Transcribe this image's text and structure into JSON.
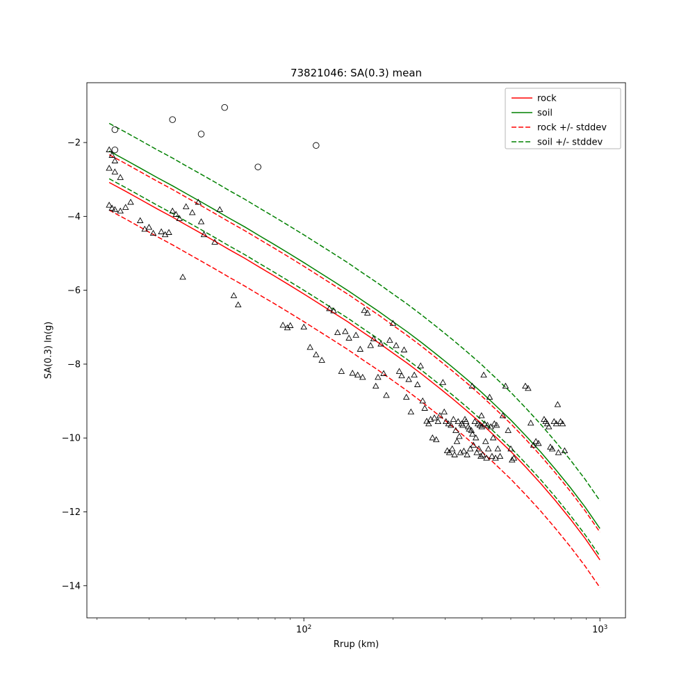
{
  "chart_data": {
    "type": "scatter",
    "title": "73821046: SA(0.3) mean",
    "xlabel": "Rrup (km)",
    "ylabel": "SA(0.3) ln(g)",
    "x_scale": "log",
    "xlim": [
      18.5,
      1220
    ],
    "ylim": [
      -14.87,
      -0.38
    ],
    "grid": false,
    "legend_position": "upper right",
    "x_major_ticks": [
      {
        "value": 100,
        "base": "10",
        "exp": "2"
      },
      {
        "value": 1000,
        "base": "10",
        "exp": "3"
      }
    ],
    "x_minor_ticks": [
      20,
      30,
      40,
      50,
      60,
      70,
      80,
      90,
      200,
      300,
      400,
      500,
      600,
      700,
      800,
      900
    ],
    "y_ticks": [
      {
        "value": -2,
        "label": "−2"
      },
      {
        "value": -4,
        "label": "−4"
      },
      {
        "value": -6,
        "label": "−6"
      },
      {
        "value": -8,
        "label": "−8"
      },
      {
        "value": -10,
        "label": "−10"
      },
      {
        "value": -12,
        "label": "−12"
      },
      {
        "value": -14,
        "label": "−14"
      }
    ],
    "stddev": 0.75,
    "colors": {
      "rock": "#ff0000",
      "soil": "#008000",
      "marker_edge": "#000000"
    },
    "legend": [
      {
        "label": "rock",
        "color": "#ff0000",
        "dash": false
      },
      {
        "label": "soil",
        "color": "#008000",
        "dash": false
      },
      {
        "label": "rock +/- stddev",
        "color": "#ff0000",
        "dash": true
      },
      {
        "label": "soil +/- stddev",
        "color": "#008000",
        "dash": true
      }
    ],
    "curves": {
      "R": [
        22,
        25,
        28,
        32,
        36,
        40,
        45,
        50,
        56,
        63,
        71,
        79,
        89,
        100,
        112,
        126,
        141,
        158,
        178,
        200,
        224,
        251,
        282,
        316,
        355,
        398,
        447,
        501,
        562,
        631,
        708,
        794,
        891,
        1000
      ],
      "rock_mean": [
        -3.08,
        -3.32,
        -3.54,
        -3.8,
        -4.02,
        -4.23,
        -4.46,
        -4.67,
        -4.9,
        -5.13,
        -5.38,
        -5.6,
        -5.85,
        -6.1,
        -6.35,
        -6.61,
        -6.86,
        -7.13,
        -7.41,
        -7.7,
        -7.98,
        -8.28,
        -8.6,
        -8.92,
        -9.26,
        -9.61,
        -9.99,
        -10.37,
        -10.79,
        -11.23,
        -11.7,
        -12.19,
        -12.72,
        -13.3
      ],
      "soil_mean": [
        -2.23,
        -2.47,
        -2.69,
        -2.95,
        -3.17,
        -3.38,
        -3.61,
        -3.82,
        -4.05,
        -4.28,
        -4.53,
        -4.75,
        -5.0,
        -5.25,
        -5.5,
        -5.76,
        -6.01,
        -6.28,
        -6.56,
        -6.85,
        -7.13,
        -7.43,
        -7.75,
        -8.07,
        -8.41,
        -8.76,
        -9.14,
        -9.52,
        -9.94,
        -10.38,
        -10.85,
        -11.34,
        -11.87,
        -12.45
      ]
    },
    "scatter": {
      "circles": [
        [
          23,
          -1.65
        ],
        [
          36,
          -1.38
        ],
        [
          54,
          -1.05
        ],
        [
          45,
          -1.77
        ],
        [
          70,
          -2.66
        ],
        [
          110,
          -2.08
        ],
        [
          23,
          -2.2
        ]
      ],
      "triangles": [
        [
          22,
          -2.2
        ],
        [
          22.5,
          -2.35
        ],
        [
          23,
          -2.5
        ],
        [
          22,
          -2.7
        ],
        [
          23,
          -2.8
        ],
        [
          24,
          -2.95
        ],
        [
          22,
          -3.7
        ],
        [
          22.5,
          -3.78
        ],
        [
          23,
          -3.82
        ],
        [
          24,
          -3.86
        ],
        [
          25,
          -3.76
        ],
        [
          26,
          -3.62
        ],
        [
          28,
          -4.12
        ],
        [
          29,
          -4.35
        ],
        [
          30,
          -4.3
        ],
        [
          31,
          -4.46
        ],
        [
          33,
          -4.42
        ],
        [
          34,
          -4.5
        ],
        [
          35,
          -4.44
        ],
        [
          36,
          -3.86
        ],
        [
          37,
          -3.95
        ],
        [
          38,
          -4.06
        ],
        [
          40,
          -3.74
        ],
        [
          42,
          -3.9
        ],
        [
          44,
          -3.62
        ],
        [
          45,
          -4.15
        ],
        [
          46,
          -4.5
        ],
        [
          39,
          -5.65
        ],
        [
          50,
          -4.7
        ],
        [
          52,
          -3.82
        ],
        [
          58,
          -6.15
        ],
        [
          60,
          -6.4
        ],
        [
          85,
          -6.95
        ],
        [
          88,
          -7.02
        ],
        [
          90,
          -6.96
        ],
        [
          100,
          -7.0
        ],
        [
          105,
          -7.55
        ],
        [
          110,
          -7.75
        ],
        [
          115,
          -7.9
        ],
        [
          122,
          -6.5
        ],
        [
          126,
          -6.56
        ],
        [
          130,
          -7.15
        ],
        [
          134,
          -8.2
        ],
        [
          138,
          -7.12
        ],
        [
          142,
          -7.3
        ],
        [
          146,
          -8.25
        ],
        [
          150,
          -7.22
        ],
        [
          152,
          -8.3
        ],
        [
          155,
          -7.6
        ],
        [
          158,
          -8.36
        ],
        [
          160,
          -6.55
        ],
        [
          164,
          -6.62
        ],
        [
          168,
          -7.5
        ],
        [
          172,
          -7.32
        ],
        [
          175,
          -8.6
        ],
        [
          178,
          -8.36
        ],
        [
          182,
          -7.46
        ],
        [
          186,
          -8.26
        ],
        [
          190,
          -8.85
        ],
        [
          195,
          -7.36
        ],
        [
          200,
          -6.9
        ],
        [
          205,
          -7.5
        ],
        [
          210,
          -8.2
        ],
        [
          214,
          -8.32
        ],
        [
          218,
          -7.62
        ],
        [
          222,
          -8.9
        ],
        [
          226,
          -8.42
        ],
        [
          230,
          -9.3
        ],
        [
          236,
          -8.3
        ],
        [
          242,
          -8.56
        ],
        [
          248,
          -8.05
        ],
        [
          252,
          -9.0
        ],
        [
          256,
          -9.2
        ],
        [
          260,
          -9.55
        ],
        [
          264,
          -9.62
        ],
        [
          268,
          -9.5
        ],
        [
          272,
          -10.0
        ],
        [
          276,
          -9.46
        ],
        [
          280,
          -10.05
        ],
        [
          284,
          -9.56
        ],
        [
          288,
          -9.4
        ],
        [
          295,
          -8.5
        ],
        [
          298,
          -9.3
        ],
        [
          302,
          -9.56
        ],
        [
          305,
          -10.35
        ],
        [
          308,
          -9.62
        ],
        [
          310,
          -10.4
        ],
        [
          314,
          -9.66
        ],
        [
          317,
          -10.3
        ],
        [
          320,
          -9.5
        ],
        [
          323,
          -10.46
        ],
        [
          326,
          -9.8
        ],
        [
          329,
          -10.1
        ],
        [
          332,
          -9.56
        ],
        [
          335,
          -9.96
        ],
        [
          338,
          -10.4
        ],
        [
          341,
          -9.62
        ],
        [
          344,
          -9.66
        ],
        [
          347,
          -10.36
        ],
        [
          350,
          -9.5
        ],
        [
          353,
          -9.56
        ],
        [
          356,
          -10.46
        ],
        [
          359,
          -9.7
        ],
        [
          362,
          -9.76
        ],
        [
          365,
          -10.3
        ],
        [
          368,
          -9.8
        ],
        [
          371,
          -9.9
        ],
        [
          374,
          -10.2
        ],
        [
          370,
          -8.6
        ],
        [
          378,
          -9.56
        ],
        [
          381,
          -10.0
        ],
        [
          384,
          -10.4
        ],
        [
          387,
          -9.62
        ],
        [
          390,
          -10.3
        ],
        [
          393,
          -9.66
        ],
        [
          396,
          -10.5
        ],
        [
          399,
          -9.7
        ],
        [
          402,
          -10.46
        ],
        [
          398,
          -9.4
        ],
        [
          405,
          -8.3
        ],
        [
          408,
          -9.62
        ],
        [
          411,
          -10.1
        ],
        [
          414,
          -10.55
        ],
        [
          417,
          -9.66
        ],
        [
          420,
          -10.3
        ],
        [
          424,
          -8.9
        ],
        [
          428,
          -9.7
        ],
        [
          432,
          -10.5
        ],
        [
          436,
          -10.0
        ],
        [
          440,
          -9.62
        ],
        [
          444,
          -10.55
        ],
        [
          448,
          -9.66
        ],
        [
          452,
          -10.3
        ],
        [
          460,
          -10.5
        ],
        [
          470,
          -9.4
        ],
        [
          480,
          -8.6
        ],
        [
          490,
          -9.8
        ],
        [
          500,
          -10.3
        ],
        [
          505,
          -10.6
        ],
        [
          512,
          -10.55
        ],
        [
          560,
          -8.6
        ],
        [
          572,
          -8.66
        ],
        [
          584,
          -9.6
        ],
        [
          596,
          -10.2
        ],
        [
          608,
          -10.1
        ],
        [
          620,
          -10.15
        ],
        [
          648,
          -9.5
        ],
        [
          656,
          -9.56
        ],
        [
          664,
          -9.62
        ],
        [
          672,
          -9.7
        ],
        [
          680,
          -10.25
        ],
        [
          690,
          -10.3
        ],
        [
          700,
          -9.56
        ],
        [
          712,
          -9.62
        ],
        [
          720,
          -9.1
        ],
        [
          724,
          -10.4
        ],
        [
          736,
          -9.56
        ],
        [
          748,
          -9.62
        ],
        [
          760,
          -10.35
        ]
      ]
    }
  }
}
